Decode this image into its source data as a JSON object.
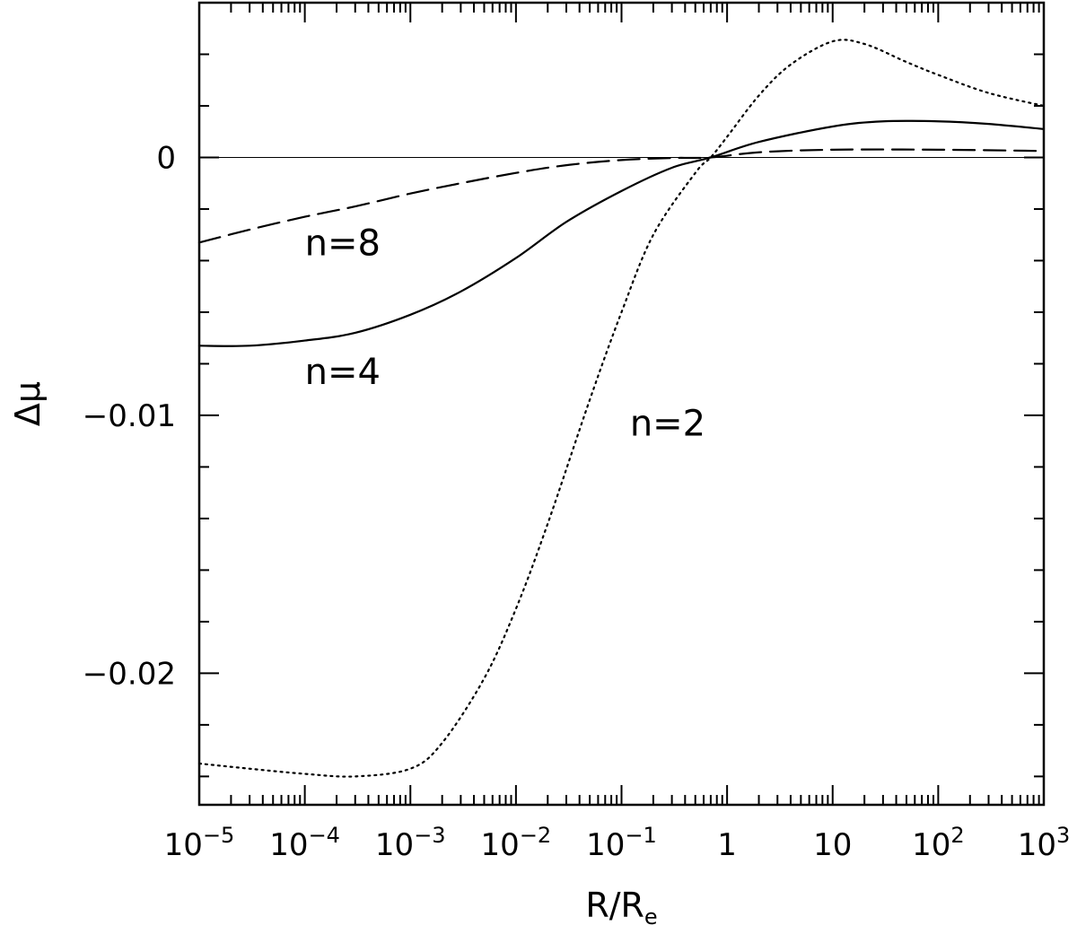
{
  "chart_data": {
    "type": "line",
    "xlabel": {
      "main": "R/R",
      "sub": "e"
    },
    "ylabel": "Δμ",
    "x_scale": "log",
    "xlim": [
      1e-05,
      1000
    ],
    "ylim": [
      -0.0251,
      0.006
    ],
    "x_ticks": [
      {
        "value": 1e-05,
        "base": "10",
        "exp": "−5"
      },
      {
        "value": 0.0001,
        "base": "10",
        "exp": "−4"
      },
      {
        "value": 0.001,
        "base": "10",
        "exp": "−3"
      },
      {
        "value": 0.01,
        "base": "10",
        "exp": "−2"
      },
      {
        "value": 0.1,
        "base": "10",
        "exp": "−1"
      },
      {
        "value": 1,
        "base": "1",
        "exp": ""
      },
      {
        "value": 10,
        "base": "10",
        "exp": ""
      },
      {
        "value": 100,
        "base": "10",
        "exp": "2"
      },
      {
        "value": 1000,
        "base": "10",
        "exp": "3"
      }
    ],
    "y_ticks": [
      {
        "value": 0,
        "label": "0"
      },
      {
        "value": -0.01,
        "label": "−0.01"
      },
      {
        "value": -0.02,
        "label": "−0.02"
      }
    ],
    "reference_line": {
      "y": 0
    },
    "series": [
      {
        "name": "n=8",
        "style": "dashed",
        "label_at": {
          "x": 0.0001,
          "y": -0.0033
        },
        "points": [
          [
            1e-05,
            -0.0033
          ],
          [
            3e-05,
            -0.0028
          ],
          [
            0.0001,
            -0.0023
          ],
          [
            0.0003,
            -0.0019
          ],
          [
            0.001,
            -0.0014
          ],
          [
            0.003,
            -0.001
          ],
          [
            0.01,
            -0.0006
          ],
          [
            0.03,
            -0.0003
          ],
          [
            0.1,
            -0.0001
          ],
          [
            0.3,
            -2e-05
          ],
          [
            0.7,
            0.0
          ],
          [
            2,
            0.0002
          ],
          [
            10,
            0.0003
          ],
          [
            100,
            0.0003
          ],
          [
            1000,
            0.00025
          ]
        ]
      },
      {
        "name": "n=4",
        "style": "solid",
        "label_at": {
          "x": 0.0001,
          "y": -0.0083
        },
        "points": [
          [
            1e-05,
            -0.0073
          ],
          [
            3e-05,
            -0.0073
          ],
          [
            0.0001,
            -0.0071
          ],
          [
            0.0003,
            -0.0068
          ],
          [
            0.001,
            -0.0061
          ],
          [
            0.003,
            -0.0052
          ],
          [
            0.01,
            -0.0039
          ],
          [
            0.03,
            -0.0025
          ],
          [
            0.1,
            -0.0013
          ],
          [
            0.3,
            -0.0004
          ],
          [
            0.7,
            0.0
          ],
          [
            2,
            0.0006
          ],
          [
            10,
            0.0012
          ],
          [
            30,
            0.0014
          ],
          [
            100,
            0.0014
          ],
          [
            300,
            0.0013
          ],
          [
            1000,
            0.0011
          ]
        ]
      },
      {
        "name": "n=2",
        "style": "dotted",
        "label_at": {
          "x": 0.12,
          "y": -0.0103
        },
        "points": [
          [
            1e-05,
            -0.0235
          ],
          [
            3e-05,
            -0.0237
          ],
          [
            0.0001,
            -0.0239
          ],
          [
            0.0003,
            -0.024
          ],
          [
            0.001,
            -0.0237
          ],
          [
            0.002,
            -0.0227
          ],
          [
            0.005,
            -0.0202
          ],
          [
            0.01,
            -0.0175
          ],
          [
            0.02,
            -0.0142
          ],
          [
            0.05,
            -0.0094
          ],
          [
            0.1,
            -0.006
          ],
          [
            0.2,
            -0.003
          ],
          [
            0.5,
            -0.0006
          ],
          [
            0.7,
            0.0
          ],
          [
            1,
            0.0008
          ],
          [
            2,
            0.0024
          ],
          [
            4,
            0.0036
          ],
          [
            10,
            0.0045
          ],
          [
            20,
            0.0044
          ],
          [
            50,
            0.0037
          ],
          [
            100,
            0.0032
          ],
          [
            300,
            0.0025
          ],
          [
            1000,
            0.002
          ]
        ]
      }
    ]
  }
}
